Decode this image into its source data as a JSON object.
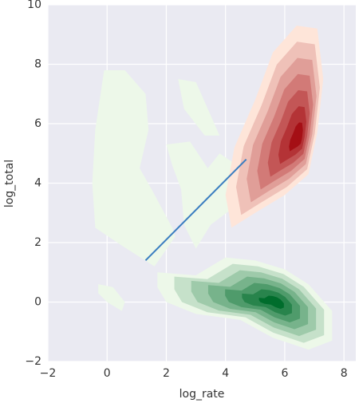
{
  "chart_data": {
    "type": "kde",
    "xlabel": "log_rate",
    "ylabel": "log_total",
    "xlim": [
      -2,
      8.4
    ],
    "ylim": [
      -2,
      10
    ],
    "xticks": [
      {
        "value": -2,
        "label": "−2"
      },
      0,
      2,
      4,
      6,
      8
    ],
    "yticks": [
      {
        "value": -2,
        "label": "−2"
      },
      0,
      2,
      4,
      6,
      8,
      10
    ],
    "grid": true,
    "background": "#eaeaf2",
    "series": [
      {
        "kind": "density",
        "color": "#006d2c",
        "light": "#edf8e9",
        "levels": 7,
        "peak": [
          5.7,
          0
        ],
        "x": [
          -0.1,
          0.6,
          1.3,
          1.4,
          1.1,
          1.5,
          2.2,
          2.3,
          1.6,
          0.5,
          -0.4,
          -0.5,
          -0.4,
          null,
          2.4,
          3.0,
          3.4,
          3.8,
          3.3,
          2.6,
          null,
          2.0,
          2.8,
          3.4,
          3.8,
          4.4,
          4.3,
          3.5,
          3.0,
          2.6,
          2.5,
          2.2,
          null,
          1.7,
          3.0,
          4.0,
          5.0,
          6.0,
          6.8,
          7.6,
          7.6,
          6.8,
          5.6,
          4.5,
          3.0,
          2.0,
          1.7,
          null,
          -0.3,
          0.2,
          0.6,
          0.5,
          0.0,
          -0.3
        ],
        "y": [
          7.8,
          7.8,
          7.0,
          5.8,
          4.5,
          3.8,
          2.5,
          2.2,
          1.2,
          1.9,
          2.5,
          4.0,
          5.8,
          null,
          7.5,
          7.4,
          6.5,
          5.6,
          5.6,
          6.5,
          null,
          5.3,
          5.4,
          4.5,
          5.0,
          4.6,
          3.2,
          2.6,
          1.8,
          2.6,
          3.8,
          4.6,
          null,
          1.0,
          0.9,
          1.5,
          1.4,
          1.1,
          0.6,
          -0.3,
          -1.3,
          -1.6,
          -1.2,
          -0.6,
          -0.4,
          0.0,
          0.5,
          null,
          0.6,
          0.5,
          0.0,
          -0.3,
          0.0,
          0.3
        ]
      },
      {
        "kind": "density",
        "color": "#a50f15",
        "light": "#fee5d9",
        "levels": 7,
        "peak": [
          6.5,
          5.5
        ],
        "x": [
          4.2,
          5.0,
          6.0,
          6.8,
          7.1,
          7.3,
          7.1,
          6.4,
          5.6,
          5.0,
          4.3,
          4.0
        ],
        "y": [
          2.5,
          3.0,
          3.6,
          4.3,
          5.7,
          7.5,
          9.2,
          9.3,
          8.4,
          6.8,
          5.2,
          3.6
        ]
      },
      {
        "kind": "line",
        "color": "#3a7dc0",
        "x": [
          1.3,
          4.7
        ],
        "y": [
          1.4,
          4.8
        ]
      }
    ]
  }
}
